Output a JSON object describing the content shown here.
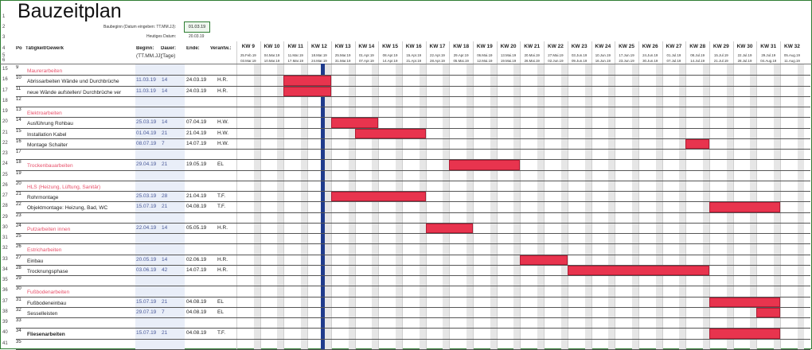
{
  "title": "Bauzeitplan",
  "baubeginn_label": "Baubeginn (Datum eingeben: TT.MM.JJ):",
  "baubeginn_value": "01.03.19",
  "heute_label": "Heutiges Datum:",
  "heute_value": "20.03.19",
  "headers": {
    "pos": "Po",
    "task": "Tätigkeit/Gewerk",
    "beginn": "Beginn:",
    "beginn_sub": "(TT.MM.JJ)",
    "dauer": "Dauer:",
    "dauer_sub": "(Tage)",
    "ende": "Ende:",
    "verantw": "Verantw.:"
  },
  "weeks": [
    {
      "kw": "KW 9",
      "d1": "25.Feb.19",
      "d2": "03.Mar.19"
    },
    {
      "kw": "KW 10",
      "d1": "04.Mar.19",
      "d2": "10.Mar.19"
    },
    {
      "kw": "KW 11",
      "d1": "11.Mar.19",
      "d2": "17.Mar.19"
    },
    {
      "kw": "KW 12",
      "d1": "18.Mar.19",
      "d2": "24.Mar.19"
    },
    {
      "kw": "KW 13",
      "d1": "25.Mar.19",
      "d2": "31.Mar.19"
    },
    {
      "kw": "KW 14",
      "d1": "01.Apr.19",
      "d2": "07.Apr.19"
    },
    {
      "kw": "KW 15",
      "d1": "08.Apr.19",
      "d2": "14.Apr.19"
    },
    {
      "kw": "KW 16",
      "d1": "15.Apr.19",
      "d2": "21.Apr.19"
    },
    {
      "kw": "KW 17",
      "d1": "22.Apr.19",
      "d2": "28.Apr.19"
    },
    {
      "kw": "KW 18",
      "d1": "29.Apr.19",
      "d2": "05.Mai.19"
    },
    {
      "kw": "KW 19",
      "d1": "06.Mai.19",
      "d2": "12.Mai.19"
    },
    {
      "kw": "KW 20",
      "d1": "13.Mai.19",
      "d2": "19.Mai.19"
    },
    {
      "kw": "KW 21",
      "d1": "20.Mai.19",
      "d2": "26.Mai.19"
    },
    {
      "kw": "KW 22",
      "d1": "27.Mai.19",
      "d2": "02.Jun.19"
    },
    {
      "kw": "KW 23",
      "d1": "03.Jun.19",
      "d2": "09.Jun.19"
    },
    {
      "kw": "KW 24",
      "d1": "10.Jun.19",
      "d2": "16.Jun.19"
    },
    {
      "kw": "KW 25",
      "d1": "17.Jun.19",
      "d2": "23.Jun.19"
    },
    {
      "kw": "KW 26",
      "d1": "24.Jun.19",
      "d2": "30.Jun.19"
    },
    {
      "kw": "KW 27",
      "d1": "01.Jul.19",
      "d2": "07.Jul.19"
    },
    {
      "kw": "KW 28",
      "d1": "08.Jul.19",
      "d2": "14.Jul.19"
    },
    {
      "kw": "KW 29",
      "d1": "15.Jul.19",
      "d2": "21.Jul.19"
    },
    {
      "kw": "KW 30",
      "d1": "22.Jul.19",
      "d2": "28.Jul.19"
    },
    {
      "kw": "KW 31",
      "d1": "29.Jul.19",
      "d2": "04.Aug.19"
    },
    {
      "kw": "KW 32",
      "d1": "05.Aug.19",
      "d2": "11.Aug.19"
    }
  ],
  "rows": [
    {
      "num": "15",
      "pos": "9",
      "task": "Maurerarbeiten",
      "type": "sec"
    },
    {
      "num": "16",
      "pos": "10",
      "task": "Abrissarbeiten Wände und Durchbrüche",
      "beginn": "11.03.19",
      "dauer": "14",
      "ende": "24.03.19",
      "ver": "H.R."
    },
    {
      "num": "17",
      "pos": "11",
      "task": "neue Wände aufstellen/ Durchbrüche ver",
      "beginn": "11.03.19",
      "dauer": "14",
      "ende": "24.03.19",
      "ver": "H.R."
    },
    {
      "num": "18",
      "pos": "12",
      "task": ""
    },
    {
      "num": "19",
      "pos": "13",
      "task": "Elektroarbeiten",
      "type": "sec"
    },
    {
      "num": "20",
      "pos": "14",
      "task": "Ausführung Rohbau",
      "beginn": "25.03.19",
      "dauer": "14",
      "ende": "07.04.19",
      "ver": "H.W."
    },
    {
      "num": "21",
      "pos": "15",
      "task": "Installation Kabel",
      "beginn": "01.04.19",
      "dauer": "21",
      "ende": "21.04.19",
      "ver": "H.W."
    },
    {
      "num": "22",
      "pos": "16",
      "task": "Montage Schalter",
      "beginn": "08.07.19",
      "dauer": "7",
      "ende": "14.07.19",
      "ver": "H.W."
    },
    {
      "num": "23",
      "pos": "17",
      "task": ""
    },
    {
      "num": "24",
      "pos": "18",
      "task": "Trockenbauarbeiten",
      "type": "sec",
      "beginn": "29.04.19",
      "dauer": "21",
      "ende": "19.05.19",
      "ver": "EL"
    },
    {
      "num": "25",
      "pos": "19",
      "task": ""
    },
    {
      "num": "26",
      "pos": "20",
      "task": "HLS (Heizung, Lüftung, Sanitär)",
      "type": "sec"
    },
    {
      "num": "27",
      "pos": "21",
      "task": "Rohrmontage",
      "beginn": "25.03.19",
      "dauer": "28",
      "ende": "21.04.19",
      "ver": "T.F."
    },
    {
      "num": "28",
      "pos": "22",
      "task": "Objektmontage: Heizung, Bad, WC",
      "beginn": "15.07.19",
      "dauer": "21",
      "ende": "04.08.19",
      "ver": "T.F."
    },
    {
      "num": "29",
      "pos": "23",
      "task": ""
    },
    {
      "num": "30",
      "pos": "24",
      "task": "Putzarbeiten innen",
      "type": "sec",
      "beginn": "22.04.19",
      "dauer": "14",
      "ende": "05.05.19",
      "ver": "H.R."
    },
    {
      "num": "31",
      "pos": "25",
      "task": ""
    },
    {
      "num": "32",
      "pos": "26",
      "task": "Estricharbeiten",
      "type": "sec"
    },
    {
      "num": "33",
      "pos": "27",
      "task": "Einbau",
      "beginn": "20.05.19",
      "dauer": "14",
      "ende": "02.06.19",
      "ver": "H.R."
    },
    {
      "num": "34",
      "pos": "28",
      "task": "Trocknungsphase",
      "beginn": "03.06.19",
      "dauer": "42",
      "ende": "14.07.19",
      "ver": "H.R."
    },
    {
      "num": "35",
      "pos": "29",
      "task": ""
    },
    {
      "num": "36",
      "pos": "30",
      "task": "Fußbodenarbeiten",
      "type": "sec"
    },
    {
      "num": "37",
      "pos": "31",
      "task": "Fußbodeneinbau",
      "beginn": "15.07.19",
      "dauer": "21",
      "ende": "04.08.19",
      "ver": "EL"
    },
    {
      "num": "38",
      "pos": "32",
      "task": "Sesselleisten",
      "beginn": "29.07.19",
      "dauer": "7",
      "ende": "04.08.19",
      "ver": "EL"
    },
    {
      "num": "39",
      "pos": "33",
      "task": ""
    },
    {
      "num": "40",
      "pos": "34",
      "task": "Fliesenarbeiten",
      "type": "bold",
      "beginn": "15.07.19",
      "dauer": "21",
      "ende": "04.08.19",
      "ver": "T.F."
    },
    {
      "num": "41",
      "pos": "35",
      "task": ""
    }
  ],
  "colors": {
    "bar": "#e8344e",
    "today": "#1f3b8c",
    "section": "#e8506a"
  }
}
